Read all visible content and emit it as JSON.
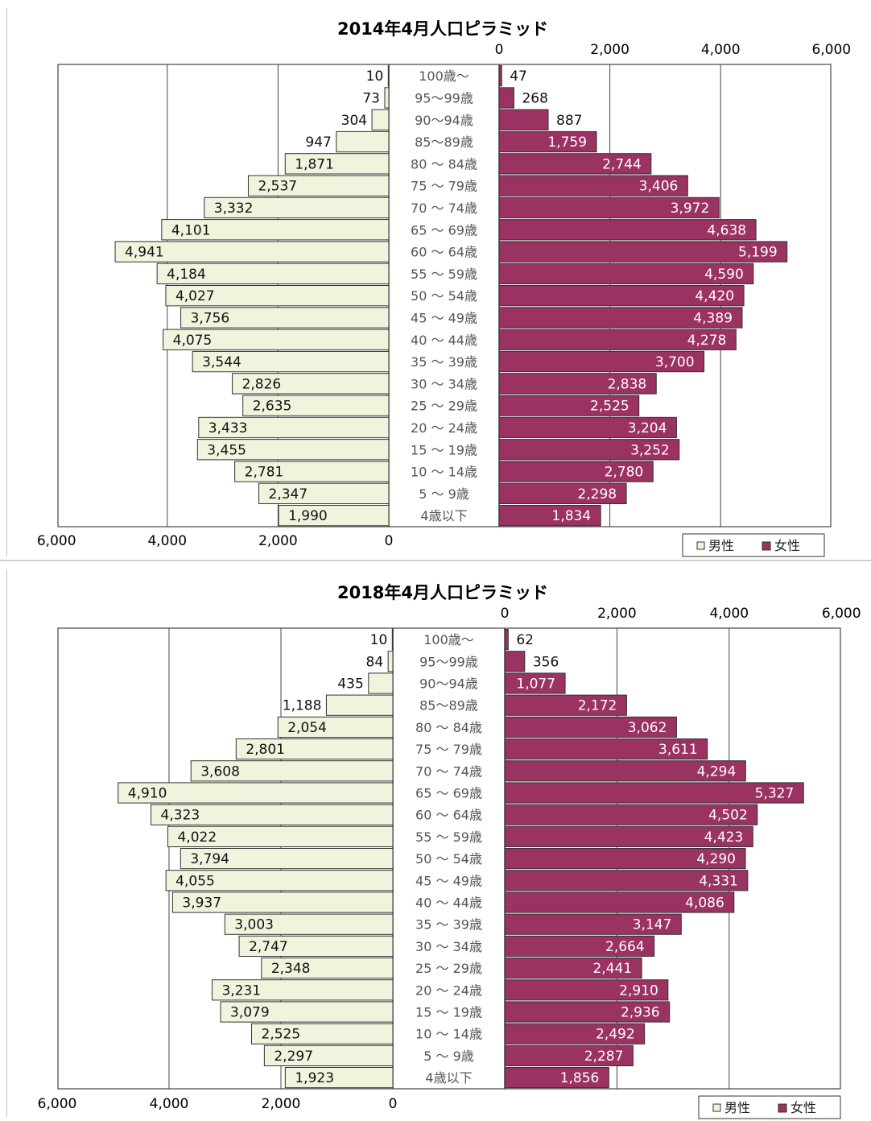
{
  "colors": {
    "male": "#eef5dc",
    "female": "#9a3262",
    "grid": "#444444",
    "bar_stroke": "#333333"
  },
  "chart_data": [
    {
      "type": "bar",
      "title": "2014年4月人口ピラミッド",
      "left_ticks": [
        "6,000",
        "4,000",
        "2,000",
        "0"
      ],
      "right_ticks": [
        "0",
        "2,000",
        "4,000",
        "6,000"
      ],
      "xlim": [
        0,
        6000
      ],
      "legend": {
        "male": "男性",
        "female": "女性",
        "position": "bottom-right"
      },
      "categories": [
        "100歳〜",
        "95〜99歳",
        "90〜94歳",
        "85〜89歳",
        "80 〜 84歳",
        "75 〜 79歳",
        "70 〜 74歳",
        "65 〜 69歳",
        "60 〜 64歳",
        "55 〜 59歳",
        "50 〜 54歳",
        "45 〜 49歳",
        "40 〜 44歳",
        "35 〜 39歳",
        "30 〜 34歳",
        "25 〜 29歳",
        "20 〜 24歳",
        "15 〜 19歳",
        "10 〜 14歳",
        "5 〜 9歳",
        "4歳以下"
      ],
      "series": [
        {
          "name": "男性",
          "values": [
            10,
            73,
            304,
            947,
            1871,
            2537,
            3332,
            4101,
            4941,
            4184,
            4027,
            3756,
            4075,
            3544,
            2826,
            2635,
            3433,
            3455,
            2781,
            2347,
            1990
          ],
          "labels": [
            "10",
            "73",
            "304",
            "947",
            "1,871",
            "2,537",
            "3,332",
            "4,101",
            "4,941",
            "4,184",
            "4,027",
            "3,756",
            "4,075",
            "3,544",
            "2,826",
            "2,635",
            "3,433",
            "3,455",
            "2,781",
            "2,347",
            "1,990"
          ]
        },
        {
          "name": "女性",
          "values": [
            47,
            268,
            887,
            1759,
            2744,
            3406,
            3972,
            4638,
            5199,
            4590,
            4420,
            4389,
            4278,
            3700,
            2838,
            2525,
            3204,
            3252,
            2780,
            2298,
            1834
          ],
          "labels": [
            "47",
            "268",
            "887",
            "1,759",
            "2,744",
            "3,406",
            "3,972",
            "4,638",
            "5,199",
            "4,590",
            "4,420",
            "4,389",
            "4,278",
            "3,700",
            "2,838",
            "2,525",
            "3,204",
            "3,252",
            "2,780",
            "2,298",
            "1,834"
          ]
        }
      ]
    },
    {
      "type": "bar",
      "title": "2018年4月人口ピラミッド",
      "left_ticks": [
        "6,000",
        "4,000",
        "2,000",
        "0"
      ],
      "right_ticks": [
        "0",
        "2,000",
        "4,000",
        "6,000"
      ],
      "xlim": [
        0,
        6000
      ],
      "legend": {
        "male": "男性",
        "female": "女性",
        "position": "bottom-right"
      },
      "categories": [
        "100歳〜",
        "95〜99歳",
        "90〜94歳",
        "85〜89歳",
        "80 〜 84歳",
        "75 〜 79歳",
        "70 〜 74歳",
        "65 〜 69歳",
        "60 〜 64歳",
        "55 〜 59歳",
        "50 〜 54歳",
        "45 〜 49歳",
        "40 〜 44歳",
        "35 〜 39歳",
        "30 〜 34歳",
        "25 〜 29歳",
        "20 〜 24歳",
        "15 〜 19歳",
        "10 〜 14歳",
        "5 〜 9歳",
        "4歳以下"
      ],
      "series": [
        {
          "name": "男性",
          "values": [
            10,
            84,
            435,
            1188,
            2054,
            2801,
            3608,
            4910,
            4323,
            4022,
            3794,
            4055,
            3937,
            3003,
            2747,
            2348,
            3231,
            3079,
            2525,
            2297,
            1923
          ],
          "labels": [
            "10",
            "84",
            "435",
            "1,188",
            "2,054",
            "2,801",
            "3,608",
            "4,910",
            "4,323",
            "4,022",
            "3,794",
            "4,055",
            "3,937",
            "3,003",
            "2,747",
            "2,348",
            "3,231",
            "3,079",
            "2,525",
            "2,297",
            "1,923"
          ]
        },
        {
          "name": "女性",
          "values": [
            62,
            356,
            1077,
            2172,
            3062,
            3611,
            4294,
            5327,
            4502,
            4423,
            4290,
            4331,
            4086,
            3147,
            2664,
            2441,
            2910,
            2936,
            2492,
            2287,
            1856
          ],
          "labels": [
            "62",
            "356",
            "1,077",
            "2,172",
            "3,062",
            "3,611",
            "4,294",
            "5,327",
            "4,502",
            "4,423",
            "4,290",
            "4,331",
            "4,086",
            "3,147",
            "2,664",
            "2,441",
            "2,910",
            "2,936",
            "2,492",
            "2,287",
            "1,856"
          ]
        }
      ]
    }
  ]
}
